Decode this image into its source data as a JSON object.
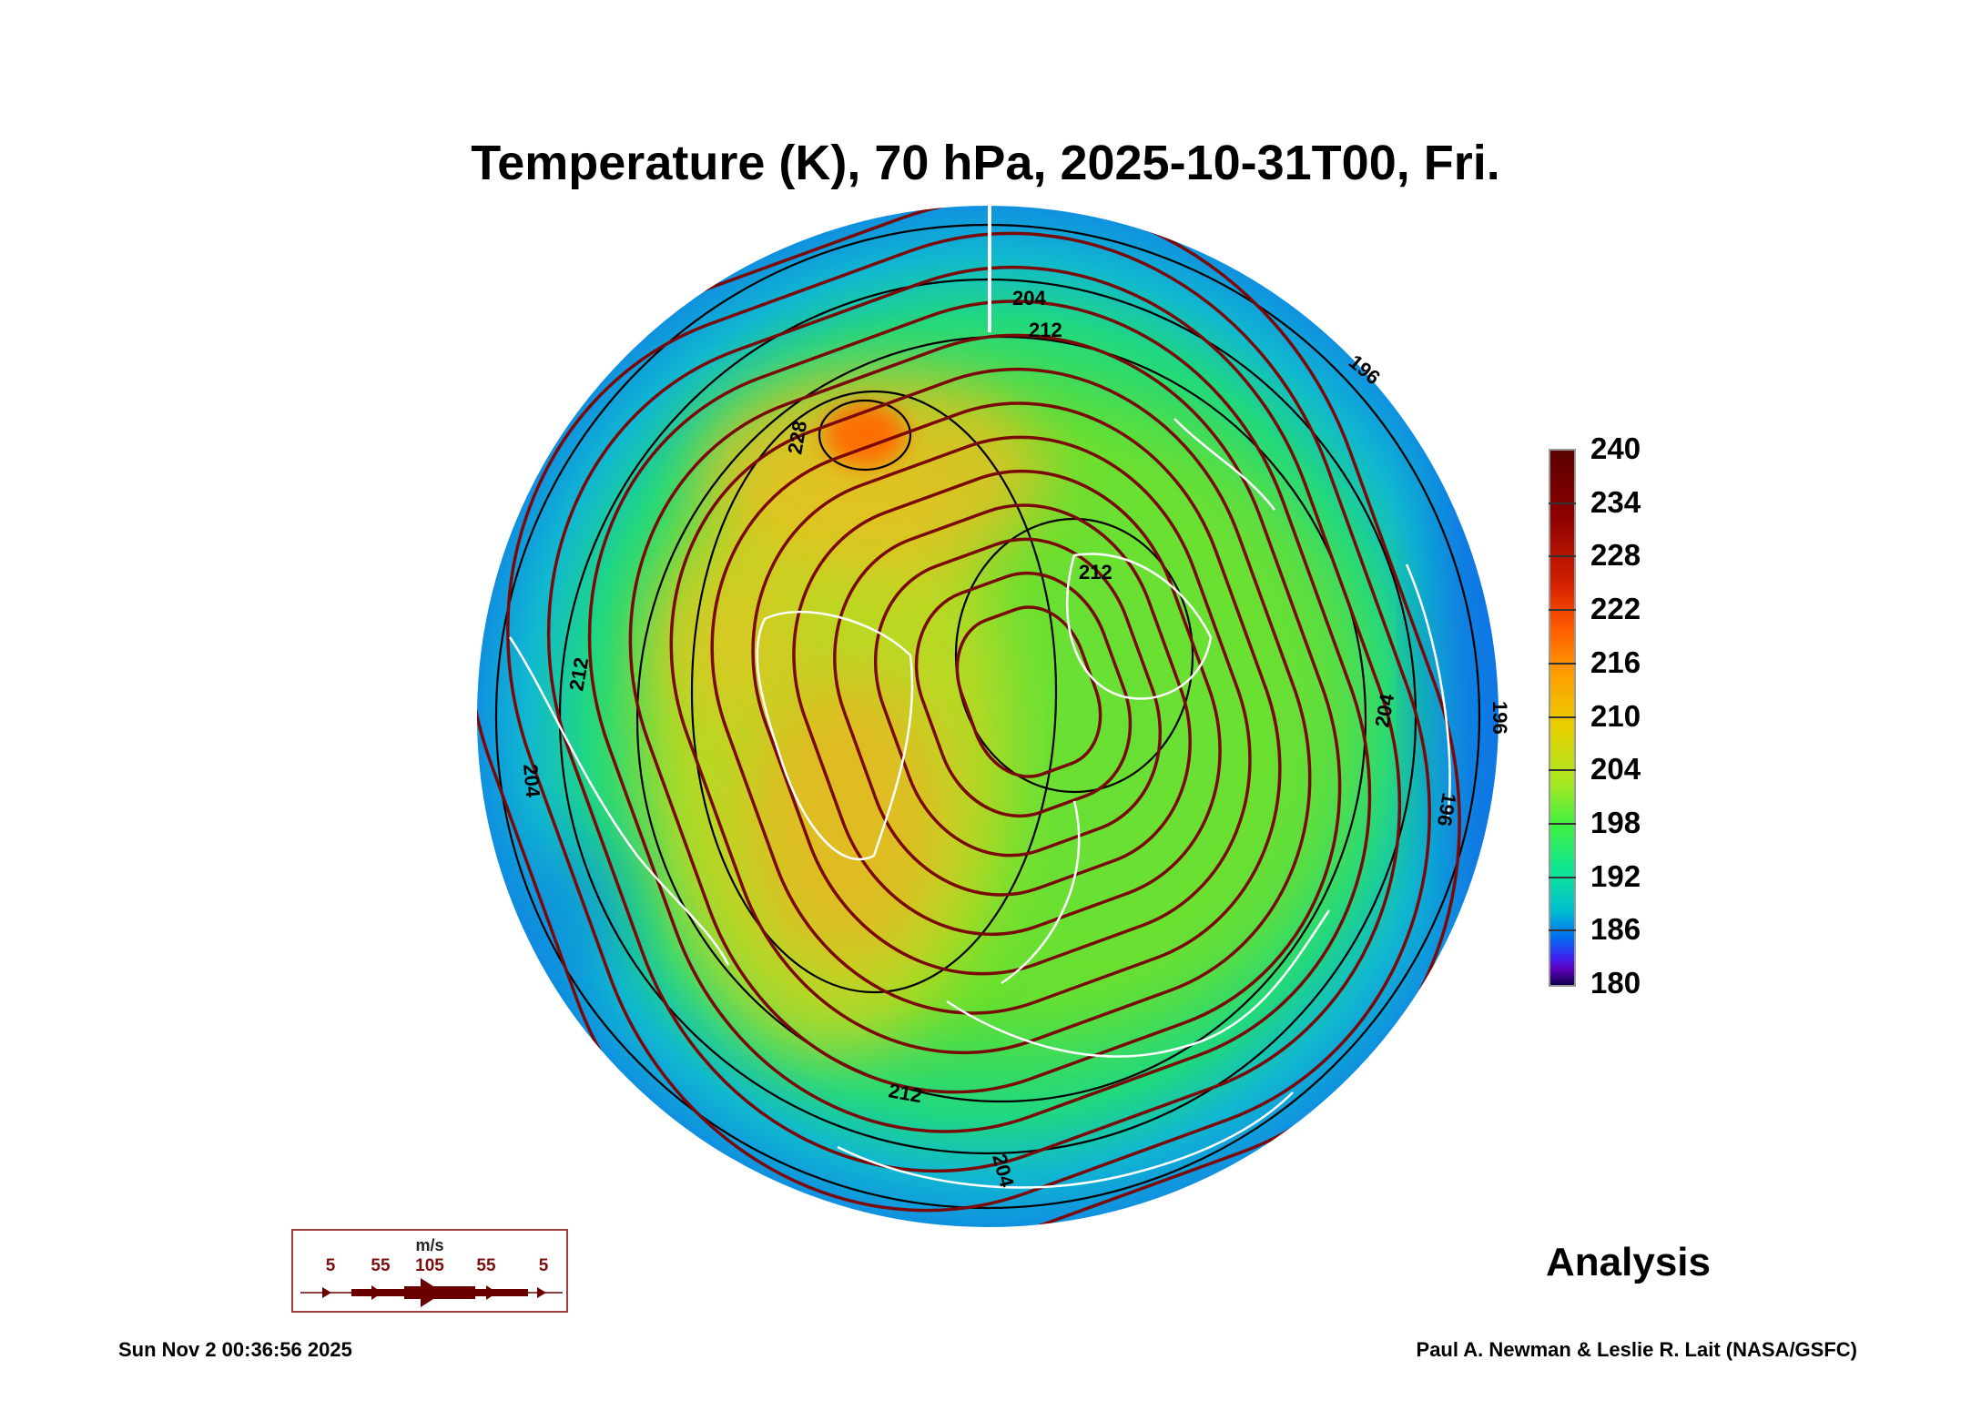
{
  "chart_data": {
    "type": "heatmap",
    "title": "Temperature (K), 70 hPa, 2025-10-31T00, Fri.",
    "projection": "polar stereographic (north pole)",
    "variable": "Temperature",
    "units": "K",
    "colorbar": {
      "ticks": [
        240,
        234,
        228,
        222,
        216,
        210,
        204,
        198,
        192,
        186,
        180
      ],
      "range": [
        180,
        240
      ]
    },
    "contour_labels": [
      "204",
      "212",
      "196",
      "228",
      "212",
      "212",
      "204",
      "212",
      "204",
      "196",
      "196",
      "204"
    ],
    "wind_legend": {
      "units": "m/s",
      "speeds": [
        "5",
        "55",
        "105",
        "55",
        "5"
      ]
    },
    "annotation": "Analysis"
  },
  "footer": {
    "timestamp": "Sun Nov  2 00:36:56 2025",
    "credit": "Paul A. Newman & Leslie R. Lait (NASA/GSFC)"
  },
  "colors": {
    "streamline": "#7a0a0a",
    "contour": "#000000",
    "coastline": "#ffffff"
  }
}
